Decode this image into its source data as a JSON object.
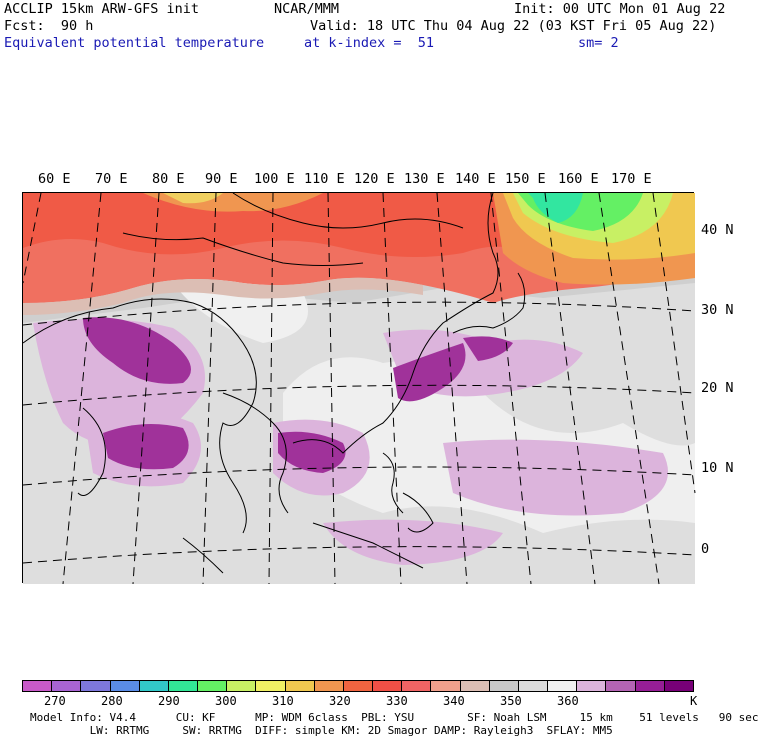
{
  "header": {
    "model": "ACCLIP 15km ARW-GFS init",
    "org": "NCAR/MMM",
    "init": "Init: 00 UTC Mon 01 Aug 22",
    "fcst": "Fcst:  90 h",
    "valid": "Valid: 18 UTC Thu 04 Aug 22 (03 KST Fri 05 Aug 22)",
    "field": "Equivalent potential temperature",
    "level": "at k-index =  51",
    "smooth": "sm= 2"
  },
  "map": {
    "lon_labels": [
      "60 E",
      "70 E",
      "80 E",
      "90 E",
      "100 E",
      "110 E",
      "120 E",
      "130 E",
      "140 E",
      "150 E",
      "160 E",
      "170 E"
    ],
    "lat_labels": [
      "40 N",
      "30 N",
      "20 N",
      "10 N",
      "0"
    ]
  },
  "colorbar": {
    "colors": [
      "#c85ac8",
      "#a864d2",
      "#7e78dc",
      "#5a8ce6",
      "#32c8c8",
      "#32e696",
      "#64f064",
      "#c8f064",
      "#f0f064",
      "#f0c850",
      "#f09650",
      "#f06440",
      "#f05046",
      "#f06464",
      "#f0a08c",
      "#dcbeb4",
      "#c8c8c8",
      "#dcdcdc",
      "#f0f0f0",
      "#dcb4dc",
      "#b464b4",
      "#961e96",
      "#780078"
    ],
    "labels": [
      "270",
      "280",
      "290",
      "300",
      "310",
      "320",
      "330",
      "340",
      "350",
      "360"
    ],
    "unit": "K"
  },
  "footer": {
    "line1": "Model Info: V4.4      CU: KF      MP: WDM 6class  PBL: YSU        SF: Noah LSM     15 km    51 levels   90 sec",
    "line2": "         LW: RRTMG     SW: RRTMG  DIFF: simple KM: 2D Smagor DAMP: Rayleigh3  SFLAY: MM5"
  }
}
